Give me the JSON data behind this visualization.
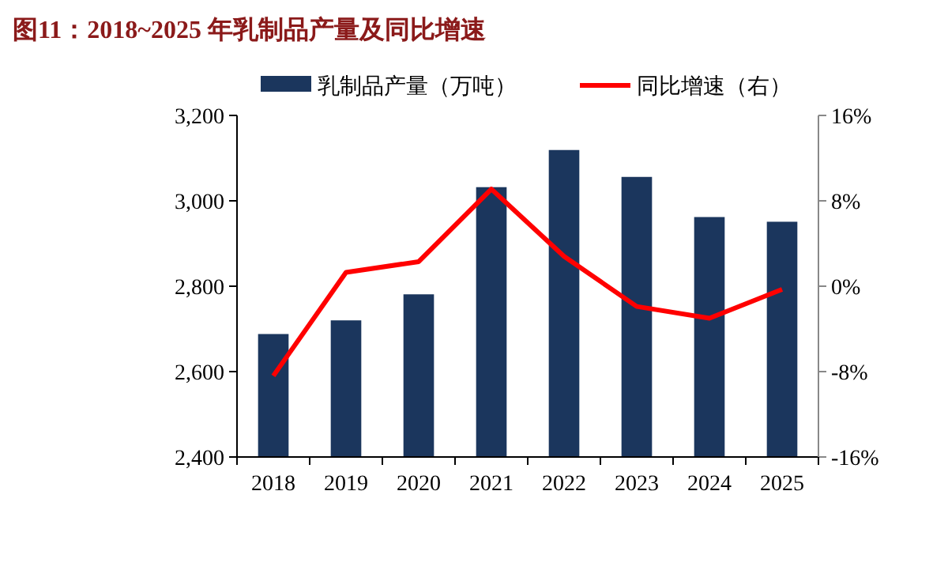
{
  "chart_data": {
    "type": "bar",
    "title": "图11：2018~2025 年乳制品产量及同比增速",
    "categories": [
      "2018",
      "2019",
      "2020",
      "2021",
      "2022",
      "2023",
      "2024",
      "2025"
    ],
    "series": [
      {
        "name": "乳制品产量（万吨）",
        "color": "#1b365d",
        "values": [
          2688,
          2720,
          2781,
          3032,
          3119,
          3056,
          2962,
          2951
        ]
      },
      {
        "name": "同比增速（右）",
        "type": "line",
        "axis": "y2",
        "color": "#ff0000",
        "values": [
          -8.4,
          1.3,
          2.3,
          9.1,
          2.8,
          -1.9,
          -3.0,
          -0.3
        ]
      }
    ],
    "ylim": [
      2400,
      3200
    ],
    "yticks": [
      {
        "value": 2400,
        "label": "2,400"
      },
      {
        "value": 2600,
        "label": "2,600"
      },
      {
        "value": 2800,
        "label": "2,800"
      },
      {
        "value": 3000,
        "label": "3,000"
      },
      {
        "value": 3200,
        "label": "3,200"
      }
    ],
    "y2lim": [
      -16,
      16
    ],
    "y2ticks": [
      {
        "value": -16,
        "label": "-16%"
      },
      {
        "value": -8,
        "label": "-8%"
      },
      {
        "value": 0,
        "label": "0%"
      },
      {
        "value": 8,
        "label": "8%"
      },
      {
        "value": 16,
        "label": "16%"
      }
    ],
    "legend": "top",
    "grid": false,
    "marker": "none",
    "line_style": "solid"
  }
}
